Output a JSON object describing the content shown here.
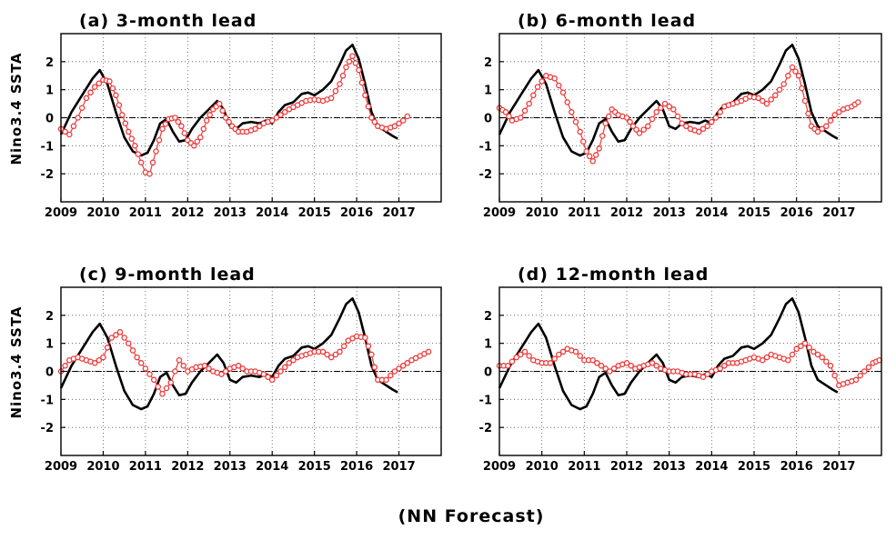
{
  "caption": "(NN Forecast)",
  "chart_data": [
    {
      "type": "line",
      "title": "(a) 3-month lead",
      "ylabel": "Nino3.4 SSTA",
      "xlabel": "",
      "xlim": [
        2009,
        2018
      ],
      "ylim": [
        -3,
        3
      ],
      "x_ticks": [
        "2009",
        "2010",
        "2011",
        "2012",
        "2013",
        "2014",
        "2015",
        "2016",
        "2017"
      ],
      "y_ticks": [
        "-2",
        "-1",
        "0",
        "1",
        "2"
      ],
      "grid": true,
      "reference_line": 0,
      "observed": {
        "style": "black solid line",
        "x": [
          2009.0,
          2009.25,
          2009.5,
          2009.75,
          2009.92,
          2010.1,
          2010.3,
          2010.5,
          2010.7,
          2010.9,
          2011.05,
          2011.2,
          2011.35,
          2011.5,
          2011.65,
          2011.8,
          2011.95,
          2012.1,
          2012.3,
          2012.5,
          2012.7,
          2012.85,
          2013.0,
          2013.15,
          2013.3,
          2013.5,
          2013.7,
          2013.85,
          2014.0,
          2014.15,
          2014.3,
          2014.5,
          2014.7,
          2014.85,
          2015.0,
          2015.2,
          2015.4,
          2015.6,
          2015.75,
          2015.9,
          2016.05,
          2016.2,
          2016.35,
          2016.5,
          2016.7,
          2016.85,
          2016.97
        ],
        "y": [
          -0.6,
          0.2,
          0.8,
          1.4,
          1.7,
          1.2,
          0.2,
          -0.7,
          -1.2,
          -1.35,
          -1.25,
          -0.8,
          -0.2,
          -0.05,
          -0.5,
          -0.85,
          -0.8,
          -0.4,
          0.0,
          0.3,
          0.6,
          0.3,
          -0.3,
          -0.4,
          -0.2,
          -0.15,
          -0.2,
          -0.1,
          -0.2,
          0.2,
          0.45,
          0.55,
          0.85,
          0.9,
          0.8,
          1.0,
          1.3,
          1.9,
          2.4,
          2.6,
          2.1,
          1.2,
          0.2,
          -0.3,
          -0.5,
          -0.65,
          -0.75
        ]
      },
      "forecast": {
        "style": "red open circles",
        "x": [
          2009.0,
          2009.2,
          2009.4,
          2009.6,
          2009.8,
          2010.0,
          2010.15,
          2010.3,
          2010.45,
          2010.6,
          2010.75,
          2010.9,
          2011.0,
          2011.1,
          2011.25,
          2011.4,
          2011.55,
          2011.7,
          2011.85,
          2012.0,
          2012.15,
          2012.3,
          2012.45,
          2012.6,
          2012.75,
          2012.9,
          2013.05,
          2013.2,
          2013.4,
          2013.6,
          2013.8,
          2014.0,
          2014.2,
          2014.4,
          2014.6,
          2014.8,
          2015.0,
          2015.2,
          2015.4,
          2015.6,
          2015.75,
          2015.9,
          2016.05,
          2016.2,
          2016.35,
          2016.5,
          2016.7,
          2016.9,
          2017.1,
          2017.2
        ],
        "y": [
          -0.4,
          -0.6,
          0.0,
          0.7,
          1.1,
          1.35,
          1.3,
          0.8,
          0.1,
          -0.5,
          -1.0,
          -1.6,
          -1.95,
          -2.0,
          -1.2,
          -0.4,
          -0.05,
          0.0,
          -0.3,
          -0.8,
          -1.0,
          -0.7,
          -0.1,
          0.3,
          0.5,
          0.0,
          -0.3,
          -0.5,
          -0.5,
          -0.4,
          -0.2,
          -0.1,
          0.1,
          0.3,
          0.45,
          0.6,
          0.65,
          0.6,
          0.7,
          1.2,
          1.8,
          2.2,
          1.7,
          0.8,
          0.0,
          -0.3,
          -0.4,
          -0.3,
          -0.1,
          0.05
        ]
      }
    },
    {
      "type": "line",
      "title": "(b) 6-month lead",
      "ylabel": "",
      "xlabel": "",
      "xlim": [
        2009,
        2018
      ],
      "ylim": [
        -3,
        3
      ],
      "x_ticks": [
        "2009",
        "2010",
        "2011",
        "2012",
        "2013",
        "2014",
        "2015",
        "2016",
        "2017"
      ],
      "y_ticks": [
        "-2",
        "-1",
        "0",
        "1",
        "2"
      ],
      "grid": true,
      "reference_line": 0,
      "observed": {
        "style": "black solid line",
        "x": [
          2009.0,
          2009.25,
          2009.5,
          2009.75,
          2009.92,
          2010.1,
          2010.3,
          2010.5,
          2010.7,
          2010.9,
          2011.05,
          2011.2,
          2011.35,
          2011.5,
          2011.65,
          2011.8,
          2011.95,
          2012.1,
          2012.3,
          2012.5,
          2012.7,
          2012.85,
          2013.0,
          2013.15,
          2013.3,
          2013.5,
          2013.7,
          2013.85,
          2014.0,
          2014.15,
          2014.3,
          2014.5,
          2014.7,
          2014.85,
          2015.0,
          2015.2,
          2015.4,
          2015.6,
          2015.75,
          2015.9,
          2016.05,
          2016.2,
          2016.35,
          2016.5,
          2016.7,
          2016.85,
          2016.97
        ],
        "y": [
          -0.6,
          0.2,
          0.8,
          1.4,
          1.7,
          1.2,
          0.2,
          -0.7,
          -1.2,
          -1.35,
          -1.25,
          -0.8,
          -0.2,
          -0.05,
          -0.5,
          -0.85,
          -0.8,
          -0.4,
          0.0,
          0.3,
          0.6,
          0.3,
          -0.3,
          -0.4,
          -0.2,
          -0.15,
          -0.2,
          -0.1,
          -0.2,
          0.2,
          0.45,
          0.55,
          0.85,
          0.9,
          0.8,
          1.0,
          1.3,
          1.9,
          2.4,
          2.6,
          2.1,
          1.2,
          0.2,
          -0.3,
          -0.5,
          -0.65,
          -0.75
        ]
      },
      "forecast": {
        "style": "red open circles",
        "x": [
          2009.0,
          2009.15,
          2009.3,
          2009.5,
          2009.7,
          2009.9,
          2010.1,
          2010.3,
          2010.5,
          2010.7,
          2010.9,
          2011.05,
          2011.2,
          2011.35,
          2011.5,
          2011.65,
          2011.8,
          2012.0,
          2012.15,
          2012.3,
          2012.5,
          2012.7,
          2012.9,
          2013.1,
          2013.3,
          2013.5,
          2013.7,
          2013.9,
          2014.1,
          2014.3,
          2014.5,
          2014.7,
          2014.9,
          2015.1,
          2015.3,
          2015.5,
          2015.7,
          2015.9,
          2016.05,
          2016.2,
          2016.35,
          2016.5,
          2016.7,
          2016.9,
          2017.1,
          2017.3,
          2017.45
        ],
        "y": [
          0.35,
          0.2,
          -0.1,
          0.0,
          0.5,
          1.1,
          1.5,
          1.4,
          0.9,
          0.2,
          -0.5,
          -1.2,
          -1.55,
          -1.1,
          -0.2,
          0.3,
          0.1,
          0.0,
          -0.3,
          -0.55,
          -0.3,
          0.2,
          0.5,
          0.3,
          -0.2,
          -0.4,
          -0.5,
          -0.3,
          0.0,
          0.4,
          0.5,
          0.6,
          0.75,
          0.7,
          0.5,
          0.8,
          1.2,
          1.8,
          1.5,
          0.6,
          -0.3,
          -0.5,
          -0.3,
          0.1,
          0.3,
          0.4,
          0.55
        ]
      }
    },
    {
      "type": "line",
      "title": "(c) 9-month lead",
      "ylabel": "Nino3.4 SSTA",
      "xlabel": "",
      "xlim": [
        2009,
        2018
      ],
      "ylim": [
        -3,
        3
      ],
      "x_ticks": [
        "2009",
        "2010",
        "2011",
        "2012",
        "2013",
        "2014",
        "2015",
        "2016",
        "2017"
      ],
      "y_ticks": [
        "-2",
        "-1",
        "0",
        "1",
        "2"
      ],
      "grid": true,
      "reference_line": 0,
      "observed": {
        "style": "black solid line",
        "x": [
          2009.0,
          2009.25,
          2009.5,
          2009.75,
          2009.92,
          2010.1,
          2010.3,
          2010.5,
          2010.7,
          2010.9,
          2011.05,
          2011.2,
          2011.35,
          2011.5,
          2011.65,
          2011.8,
          2011.95,
          2012.1,
          2012.3,
          2012.5,
          2012.7,
          2012.85,
          2013.0,
          2013.15,
          2013.3,
          2013.5,
          2013.7,
          2013.85,
          2014.0,
          2014.15,
          2014.3,
          2014.5,
          2014.7,
          2014.85,
          2015.0,
          2015.2,
          2015.4,
          2015.6,
          2015.75,
          2015.9,
          2016.05,
          2016.2,
          2016.35,
          2016.5,
          2016.7,
          2016.85,
          2016.97
        ],
        "y": [
          -0.6,
          0.2,
          0.8,
          1.4,
          1.7,
          1.2,
          0.2,
          -0.7,
          -1.2,
          -1.35,
          -1.25,
          -0.8,
          -0.2,
          -0.05,
          -0.5,
          -0.85,
          -0.8,
          -0.4,
          0.0,
          0.3,
          0.6,
          0.3,
          -0.3,
          -0.4,
          -0.2,
          -0.15,
          -0.2,
          -0.1,
          -0.2,
          0.2,
          0.45,
          0.55,
          0.85,
          0.9,
          0.8,
          1.0,
          1.3,
          1.9,
          2.4,
          2.6,
          2.1,
          1.2,
          0.2,
          -0.3,
          -0.5,
          -0.65,
          -0.75
        ]
      },
      "forecast": {
        "style": "red open circles",
        "x": [
          2009.0,
          2009.2,
          2009.4,
          2009.6,
          2009.8,
          2010.0,
          2010.2,
          2010.4,
          2010.6,
          2010.8,
          2011.0,
          2011.2,
          2011.4,
          2011.6,
          2011.8,
          2012.0,
          2012.2,
          2012.4,
          2012.6,
          2012.8,
          2013.0,
          2013.2,
          2013.4,
          2013.6,
          2013.8,
          2014.0,
          2014.2,
          2014.4,
          2014.6,
          2014.8,
          2015.0,
          2015.2,
          2015.4,
          2015.6,
          2015.8,
          2016.0,
          2016.2,
          2016.35,
          2016.5,
          2016.7,
          2016.9,
          2017.1,
          2017.3,
          2017.5,
          2017.7
        ],
        "y": [
          0.0,
          0.4,
          0.5,
          0.4,
          0.3,
          0.5,
          1.2,
          1.4,
          1.0,
          0.5,
          0.1,
          -0.3,
          -0.8,
          -0.4,
          0.4,
          0.0,
          0.15,
          0.2,
          0.0,
          -0.1,
          0.1,
          0.2,
          0.0,
          0.0,
          -0.1,
          -0.3,
          0.0,
          0.3,
          0.5,
          0.6,
          0.7,
          0.7,
          0.5,
          0.7,
          1.1,
          1.25,
          1.2,
          0.6,
          -0.3,
          -0.3,
          0.0,
          0.2,
          0.4,
          0.55,
          0.7
        ]
      }
    },
    {
      "type": "line",
      "title": "(d) 12-month lead",
      "ylabel": "",
      "xlabel": "",
      "xlim": [
        2009,
        2018
      ],
      "ylim": [
        -3,
        3
      ],
      "x_ticks": [
        "2009",
        "2010",
        "2011",
        "2012",
        "2013",
        "2014",
        "2015",
        "2016",
        "2017"
      ],
      "y_ticks": [
        "-2",
        "-1",
        "0",
        "1",
        "2"
      ],
      "grid": true,
      "reference_line": 0,
      "observed": {
        "style": "black solid line",
        "x": [
          2009.0,
          2009.25,
          2009.5,
          2009.75,
          2009.92,
          2010.1,
          2010.3,
          2010.5,
          2010.7,
          2010.9,
          2011.05,
          2011.2,
          2011.35,
          2011.5,
          2011.65,
          2011.8,
          2011.95,
          2012.1,
          2012.3,
          2012.5,
          2012.7,
          2012.85,
          2013.0,
          2013.15,
          2013.3,
          2013.5,
          2013.7,
          2013.85,
          2014.0,
          2014.15,
          2014.3,
          2014.5,
          2014.7,
          2014.85,
          2015.0,
          2015.2,
          2015.4,
          2015.6,
          2015.75,
          2015.9,
          2016.05,
          2016.2,
          2016.35,
          2016.5,
          2016.7,
          2016.85,
          2016.97
        ],
        "y": [
          -0.6,
          0.2,
          0.8,
          1.4,
          1.7,
          1.2,
          0.2,
          -0.7,
          -1.2,
          -1.35,
          -1.25,
          -0.8,
          -0.2,
          -0.05,
          -0.5,
          -0.85,
          -0.8,
          -0.4,
          0.0,
          0.3,
          0.6,
          0.3,
          -0.3,
          -0.4,
          -0.2,
          -0.15,
          -0.2,
          -0.1,
          -0.2,
          0.2,
          0.45,
          0.55,
          0.85,
          0.9,
          0.8,
          1.0,
          1.3,
          1.9,
          2.4,
          2.6,
          2.1,
          1.2,
          0.2,
          -0.3,
          -0.5,
          -0.65,
          -0.75
        ]
      },
      "forecast": {
        "style": "red open circles",
        "x": [
          2009.0,
          2009.2,
          2009.4,
          2009.6,
          2009.8,
          2010.0,
          2010.2,
          2010.4,
          2010.6,
          2010.8,
          2011.0,
          2011.2,
          2011.4,
          2011.6,
          2011.8,
          2012.0,
          2012.2,
          2012.4,
          2012.6,
          2012.8,
          2013.0,
          2013.2,
          2013.4,
          2013.6,
          2013.8,
          2014.0,
          2014.2,
          2014.4,
          2014.6,
          2014.8,
          2015.0,
          2015.2,
          2015.4,
          2015.6,
          2015.8,
          2016.0,
          2016.2,
          2016.4,
          2016.6,
          2016.8,
          2017.0,
          2017.2,
          2017.4,
          2017.6,
          2017.8,
          2017.95
        ],
        "y": [
          0.2,
          0.2,
          0.5,
          0.7,
          0.4,
          0.3,
          0.3,
          0.6,
          0.8,
          0.7,
          0.4,
          0.4,
          0.2,
          0.0,
          0.2,
          0.3,
          0.1,
          0.2,
          0.3,
          0.1,
          0.0,
          0.0,
          -0.1,
          -0.1,
          -0.2,
          0.0,
          0.1,
          0.3,
          0.3,
          0.4,
          0.5,
          0.4,
          0.6,
          0.5,
          0.4,
          0.8,
          1.0,
          0.7,
          0.5,
          0.2,
          -0.5,
          -0.4,
          -0.3,
          0.0,
          0.3,
          0.4
        ]
      }
    }
  ]
}
